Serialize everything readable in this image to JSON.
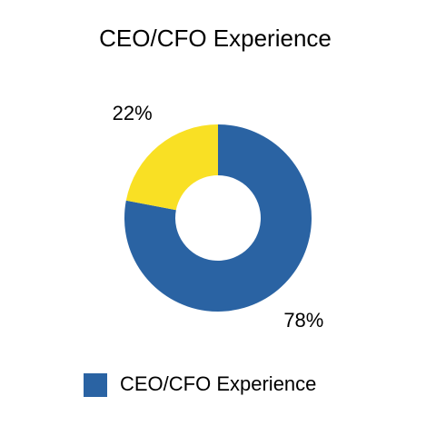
{
  "chart_data": {
    "type": "donut",
    "title": "CEO/CFO Experience",
    "categories": [
      "CEO/CFO Experience",
      null
    ],
    "values": [
      78,
      22
    ],
    "value_labels": [
      "78%",
      "22%"
    ],
    "colors": [
      "#2a63a3",
      "#f9e024"
    ]
  }
}
